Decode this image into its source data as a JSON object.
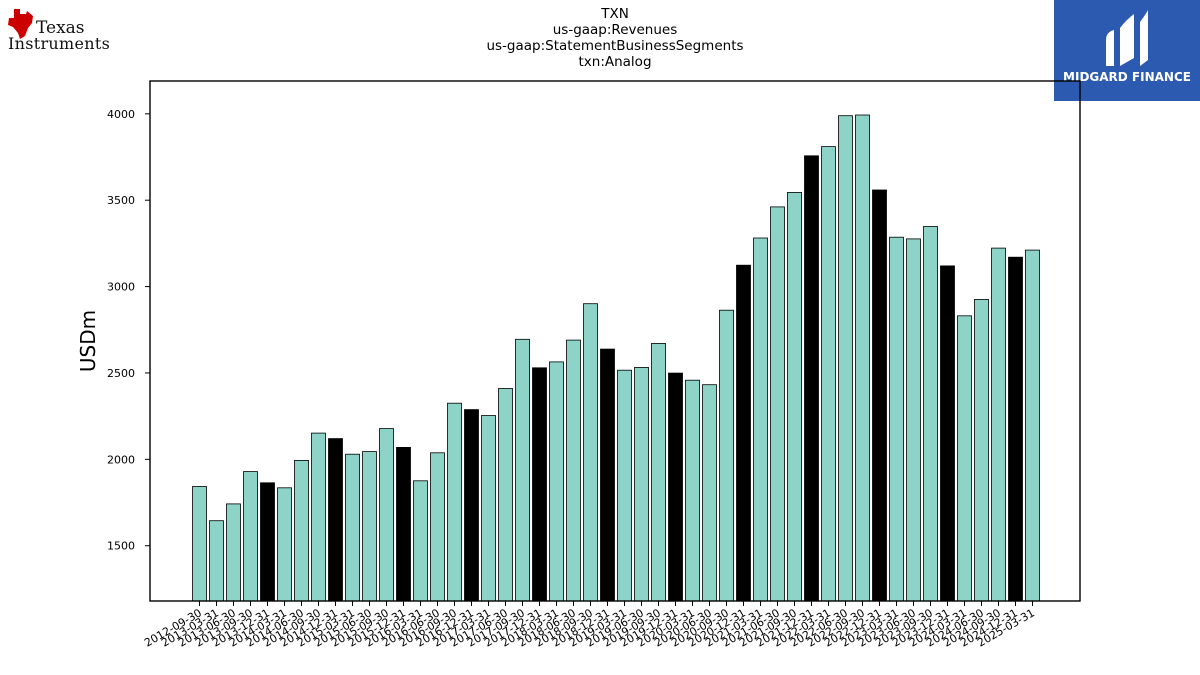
{
  "company": {
    "logo_line1": "Texas",
    "logo_line2": "Instruments",
    "brand_color": "#cc0000"
  },
  "titles": [
    "TXN",
    "us-gaap:Revenues",
    "us-gaap:StatementBusinessSegments",
    "txn:Analog"
  ],
  "watermark": {
    "label": "MIDGARD FINANCE",
    "bg_color": "#2c5ab0"
  },
  "chart_data": {
    "type": "bar",
    "title": "",
    "xlabel": "",
    "ylabel": "USDm",
    "ylim": [
      1180,
      4190
    ],
    "yticks": [
      1500,
      2000,
      2500,
      3000,
      3500,
      4000
    ],
    "grid": false,
    "legend": "none",
    "colors": {
      "regular": "#8dd3c7",
      "highlight": "#000000",
      "edge": "#000000"
    },
    "highlight_rule": "fiscal year-end (12-31) quarters in black",
    "categories": [
      "2012-09-30",
      "2013-03-31",
      "2013-06-30",
      "2013-09-30",
      "2013-12-31",
      "2014-03-31",
      "2014-06-30",
      "2014-09-30",
      "2014-12-31",
      "2015-03-31",
      "2015-06-30",
      "2015-09-30",
      "2015-12-31",
      "2016-03-31",
      "2016-06-30",
      "2016-09-30",
      "2016-12-31",
      "2017-03-31",
      "2017-06-30",
      "2017-09-30",
      "2017-12-31",
      "2018-03-31",
      "2018-06-30",
      "2018-09-30",
      "2018-12-31",
      "2019-03-31",
      "2019-06-30",
      "2019-09-30",
      "2019-12-31",
      "2020-03-31",
      "2020-06-30",
      "2020-09-30",
      "2020-12-31",
      "2021-03-31",
      "2021-06-30",
      "2021-09-30",
      "2021-12-31",
      "2022-03-31",
      "2022-06-30",
      "2022-09-30",
      "2022-12-31",
      "2023-03-31",
      "2023-06-30",
      "2023-09-30",
      "2023-12-31",
      "2024-03-31",
      "2024-06-30",
      "2024-09-30",
      "2024-12-31",
      "2025-03-31"
    ],
    "values": [
      1843,
      1645,
      1742,
      1929,
      1864,
      1835,
      1994,
      2152,
      2120,
      2030,
      2045,
      2178,
      2069,
      1876,
      2038,
      2325,
      2288,
      2254,
      2410,
      2695,
      2530,
      2564,
      2690,
      2901,
      2638,
      2516,
      2532,
      2671,
      2499,
      2458,
      2432,
      2863,
      3124,
      3281,
      3461,
      3545,
      3757,
      3810,
      3989,
      3993,
      3559,
      3286,
      3276,
      3348,
      3120,
      2831,
      2926,
      3223,
      3170,
      3211
    ],
    "highlight": [
      false,
      false,
      false,
      false,
      true,
      false,
      false,
      false,
      true,
      false,
      false,
      false,
      true,
      false,
      false,
      false,
      true,
      false,
      false,
      false,
      true,
      false,
      false,
      false,
      true,
      false,
      false,
      false,
      true,
      false,
      false,
      false,
      true,
      false,
      false,
      false,
      true,
      false,
      false,
      false,
      true,
      false,
      false,
      false,
      true,
      false,
      false,
      false,
      true,
      false
    ]
  }
}
